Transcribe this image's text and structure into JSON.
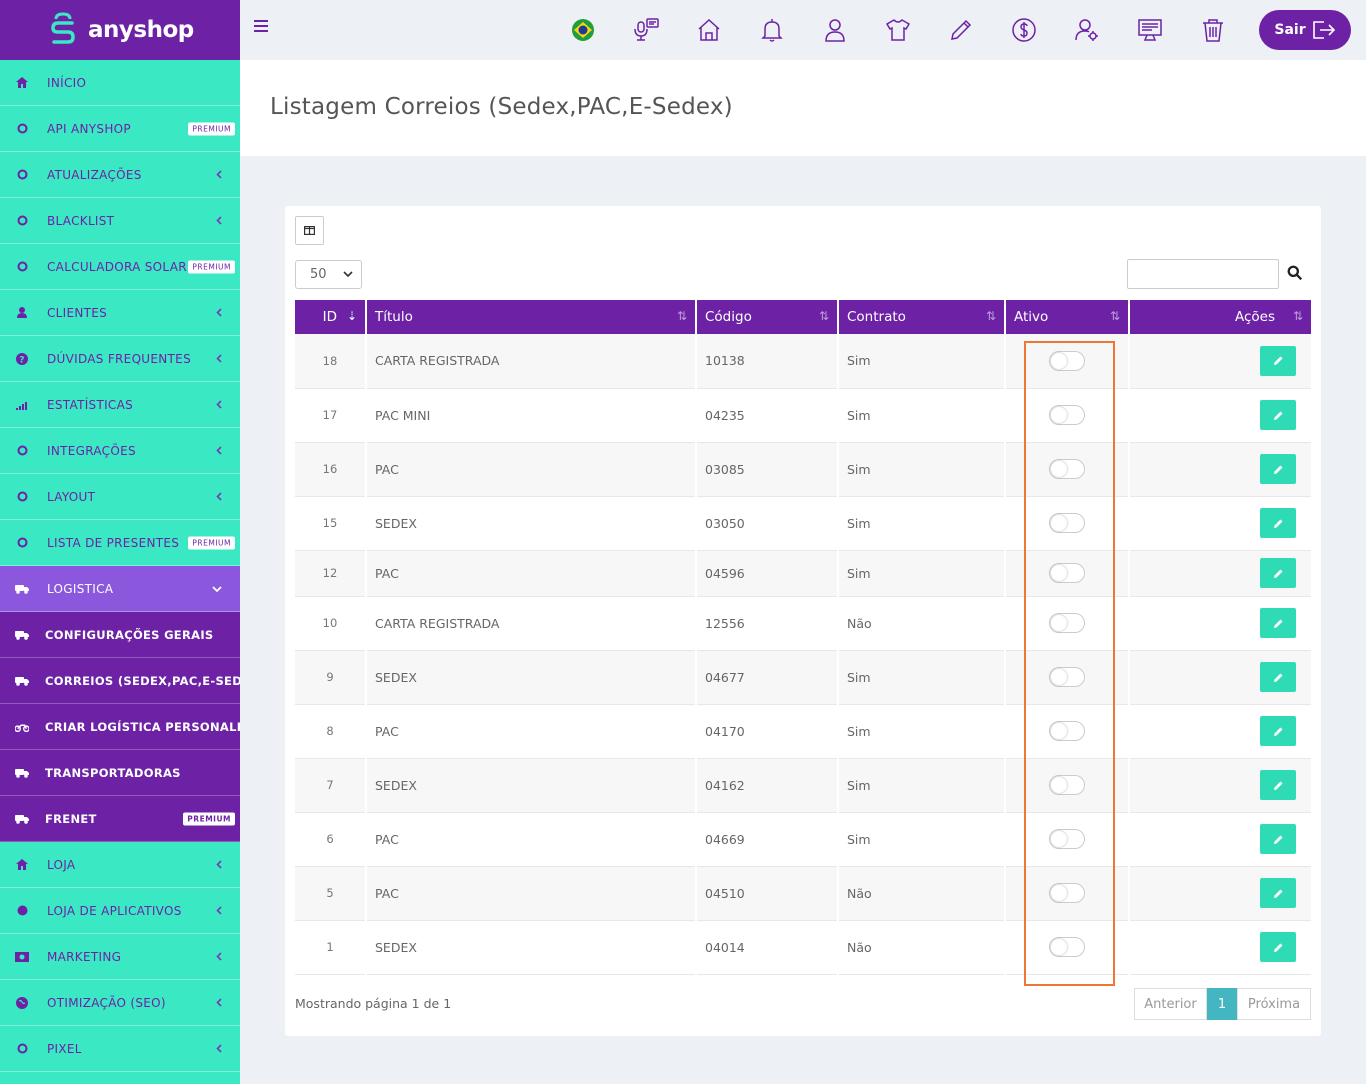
{
  "brand": {
    "name": "anyshop"
  },
  "sidebar": {
    "items": [
      {
        "label": "INÍCIO",
        "icon": "home-icon",
        "chevron": false,
        "badge": ""
      },
      {
        "label": "API ANYSHOP",
        "icon": "circle-icon",
        "chevron": false,
        "badge": "PREMIUM"
      },
      {
        "label": "ATUALIZAÇÕES",
        "icon": "circle-icon",
        "chevron": true,
        "badge": ""
      },
      {
        "label": "BLACKLIST",
        "icon": "circle-icon",
        "chevron": true,
        "badge": ""
      },
      {
        "label": "CALCULADORA SOLAR",
        "icon": "circle-icon",
        "chevron": false,
        "badge": "PREMIUM"
      },
      {
        "label": "CLIENTES",
        "icon": "user-icon",
        "chevron": true,
        "badge": ""
      },
      {
        "label": "DÚVIDAS FREQUENTES",
        "icon": "question-icon",
        "chevron": true,
        "badge": ""
      },
      {
        "label": "ESTATÍSTICAS",
        "icon": "signal-icon",
        "chevron": true,
        "badge": ""
      },
      {
        "label": "INTEGRAÇÕES",
        "icon": "circle-icon",
        "chevron": true,
        "badge": ""
      },
      {
        "label": "LAYOUT",
        "icon": "circle-icon",
        "chevron": true,
        "badge": ""
      },
      {
        "label": "LISTA DE PRESENTES",
        "icon": "circle-icon",
        "chevron": false,
        "badge": "PREMIUM"
      },
      {
        "label": "LOGISTICA",
        "icon": "truck-icon",
        "chevron": true,
        "badge": "",
        "active": true
      },
      {
        "label": "CONFIGURAÇÕES GERAIS",
        "icon": "truck-icon",
        "sub": true,
        "badge": ""
      },
      {
        "label": "CORREIOS (SEDEX,PAC,E-SEDEX)",
        "icon": "truck-icon",
        "sub": true,
        "badge": ""
      },
      {
        "label": "CRIAR LOGÍSTICA PERSONALIZADA",
        "icon": "motorcycle-icon",
        "sub": true,
        "badge": ""
      },
      {
        "label": "TRANSPORTADORAS",
        "icon": "truck-icon",
        "sub": true,
        "badge": ""
      },
      {
        "label": "FRENET",
        "icon": "truck-icon",
        "sub": true,
        "badge": "PREMIUM"
      },
      {
        "label": "LOJA",
        "icon": "home-icon",
        "chevron": true,
        "badge": ""
      },
      {
        "label": "LOJA DE APLICATIVOS",
        "icon": "dot-icon",
        "chevron": true,
        "badge": ""
      },
      {
        "label": "MARKETING",
        "icon": "money-icon",
        "chevron": true,
        "badge": ""
      },
      {
        "label": "OTIMIZAÇÃO (SEO)",
        "icon": "globe-icon",
        "chevron": true,
        "badge": ""
      },
      {
        "label": "PIXEL",
        "icon": "circle-icon",
        "chevron": true,
        "badge": ""
      }
    ]
  },
  "topbar": {
    "icons": [
      "brazil-flag-icon",
      "support-chat-icon",
      "home-icon",
      "bell-icon",
      "user-icon",
      "shirt-icon",
      "pencil-icon",
      "dollar-icon",
      "user-gear-icon",
      "monitor-icon",
      "trash-icon"
    ],
    "logout_label": "Sair"
  },
  "page": {
    "title": "Listagem Correios (Sedex,PAC,E-Sedex)"
  },
  "table": {
    "page_size": "50",
    "search_value": "",
    "columns": [
      "ID",
      "Título",
      "Código",
      "Contrato",
      "Ativo",
      "Ações"
    ],
    "rows": [
      {
        "id": "18",
        "titulo": "CARTA REGISTRADA",
        "codigo": "10138",
        "contrato": "Sim"
      },
      {
        "id": "17",
        "titulo": "PAC MINI",
        "codigo": "04235",
        "contrato": "Sim"
      },
      {
        "id": "16",
        "titulo": "PAC",
        "codigo": "03085",
        "contrato": "Sim"
      },
      {
        "id": "15",
        "titulo": "SEDEX",
        "codigo": "03050",
        "contrato": "Sim"
      },
      {
        "id": "12",
        "titulo": "PAC",
        "codigo": "04596",
        "contrato": "Sim",
        "partial": true
      },
      {
        "id": "10",
        "titulo": "CARTA REGISTRADA",
        "codigo": "12556",
        "contrato": "Não"
      },
      {
        "id": "9",
        "titulo": "SEDEX",
        "codigo": "04677",
        "contrato": "Sim"
      },
      {
        "id": "8",
        "titulo": "PAC",
        "codigo": "04170",
        "contrato": "Sim"
      },
      {
        "id": "7",
        "titulo": "SEDEX",
        "codigo": "04162",
        "contrato": "Sim"
      },
      {
        "id": "6",
        "titulo": "PAC",
        "codigo": "04669",
        "contrato": "Sim"
      },
      {
        "id": "5",
        "titulo": "PAC",
        "codigo": "04510",
        "contrato": "Não"
      },
      {
        "id": "1",
        "titulo": "SEDEX",
        "codigo": "04014",
        "contrato": "Não"
      }
    ],
    "footer_info": "Mostrando página 1 de 1",
    "pager": {
      "prev": "Anterior",
      "current": "1",
      "next": "Próxima"
    }
  },
  "colors": {
    "purple": "#6d22a6",
    "teal": "#3ae8c4",
    "highlight": "#ee7733"
  }
}
